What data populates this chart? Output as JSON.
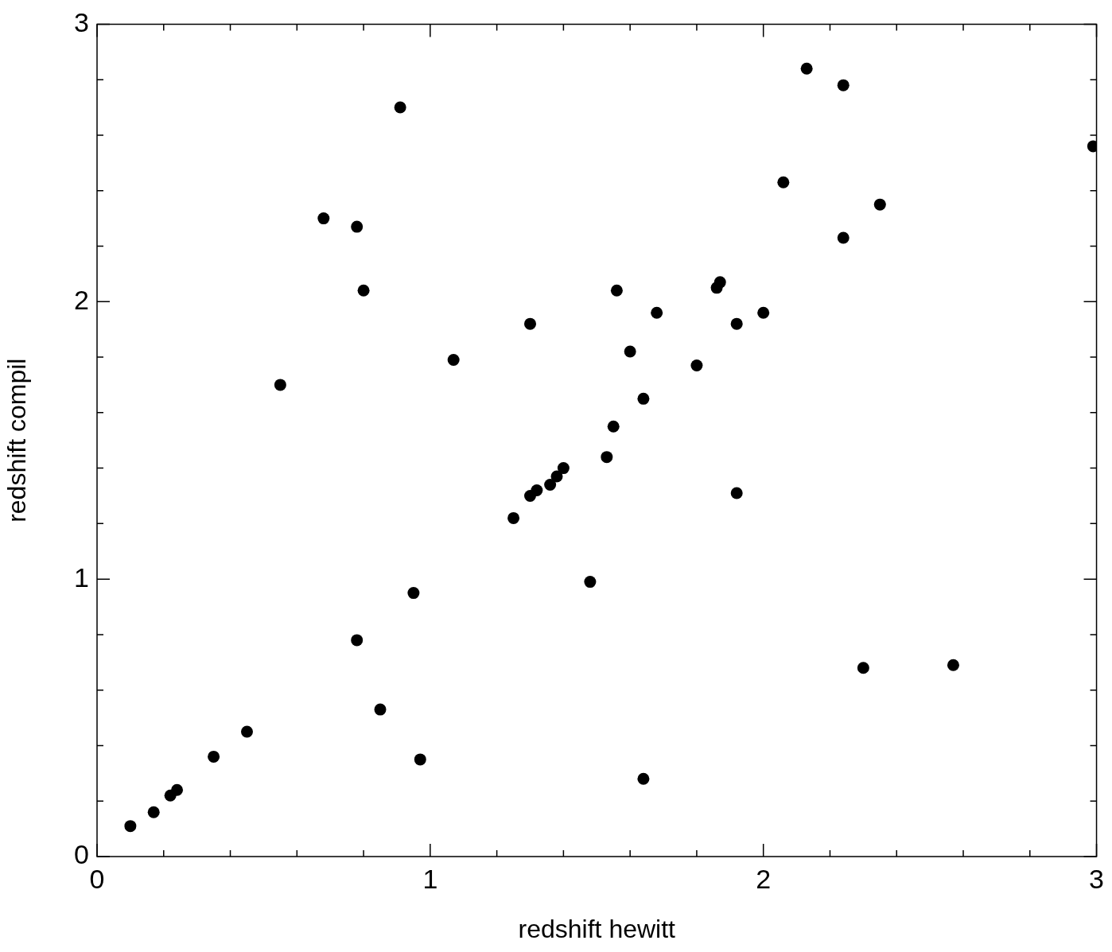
{
  "chart_data": {
    "type": "scatter",
    "xlabel": "redshift hewitt",
    "ylabel": "redshift compil",
    "marker": "circle",
    "grid": false,
    "legend": false,
    "xlim": [
      0,
      3
    ],
    "ylim": [
      0,
      3
    ],
    "xticks": [
      0,
      {
        "value": 0.2,
        "label": null
      },
      {
        "value": 0.4,
        "label": null
      },
      {
        "value": 0.6,
        "label": null
      },
      {
        "value": 0.8,
        "label": null
      },
      1,
      {
        "value": 1.2,
        "label": null
      },
      {
        "value": 1.4,
        "label": null
      },
      {
        "value": 1.6,
        "label": null
      },
      {
        "value": 1.8,
        "label": null
      },
      2,
      {
        "value": 2.2,
        "label": null
      },
      {
        "value": 2.4,
        "label": null
      },
      {
        "value": 2.6,
        "label": null
      },
      {
        "value": 2.8,
        "label": null
      },
      3
    ],
    "yticks": [
      0,
      {
        "value": 0.2,
        "label": null
      },
      {
        "value": 0.4,
        "label": null
      },
      {
        "value": 0.6,
        "label": null
      },
      {
        "value": 0.8,
        "label": null
      },
      1,
      {
        "value": 1.2,
        "label": null
      },
      {
        "value": 1.4,
        "label": null
      },
      {
        "value": 1.6,
        "label": null
      },
      {
        "value": 1.8,
        "label": null
      },
      2,
      {
        "value": 2.2,
        "label": null
      },
      {
        "value": 2.4,
        "label": null
      },
      {
        "value": 2.6,
        "label": null
      },
      {
        "value": 2.8,
        "label": null
      },
      3
    ],
    "series": [
      {
        "color": "#000000",
        "x": [
          0.1,
          0.17,
          0.22,
          0.24,
          0.35,
          0.45,
          0.55,
          0.68,
          0.78,
          0.8,
          0.78,
          0.85,
          0.91,
          0.95,
          0.97,
          1.07,
          1.25,
          1.3,
          1.3,
          1.32,
          1.36,
          1.37,
          1.38,
          1.4,
          1.48,
          1.53,
          1.55,
          1.56,
          1.6,
          1.64,
          1.64,
          1.68,
          1.8,
          1.86,
          1.87,
          1.92,
          1.92,
          2.0,
          2.06,
          2.13,
          2.24,
          2.24,
          2.3,
          2.35,
          2.57,
          2.99
        ],
        "values": [
          0.11,
          0.16,
          0.22,
          0.24,
          0.36,
          0.45,
          1.7,
          2.3,
          2.27,
          2.04,
          0.78,
          0.53,
          2.7,
          0.95,
          0.35,
          1.79,
          1.22,
          1.92,
          1.3,
          1.32,
          1.34,
          null,
          1.37,
          1.4,
          0.99,
          1.44,
          1.55,
          2.04,
          1.82,
          1.65,
          0.28,
          1.96,
          1.77,
          2.05,
          2.07,
          1.92,
          1.31,
          1.96,
          2.43,
          2.84,
          2.78,
          2.23,
          0.68,
          2.35,
          0.69,
          2.56
        ]
      }
    ]
  }
}
